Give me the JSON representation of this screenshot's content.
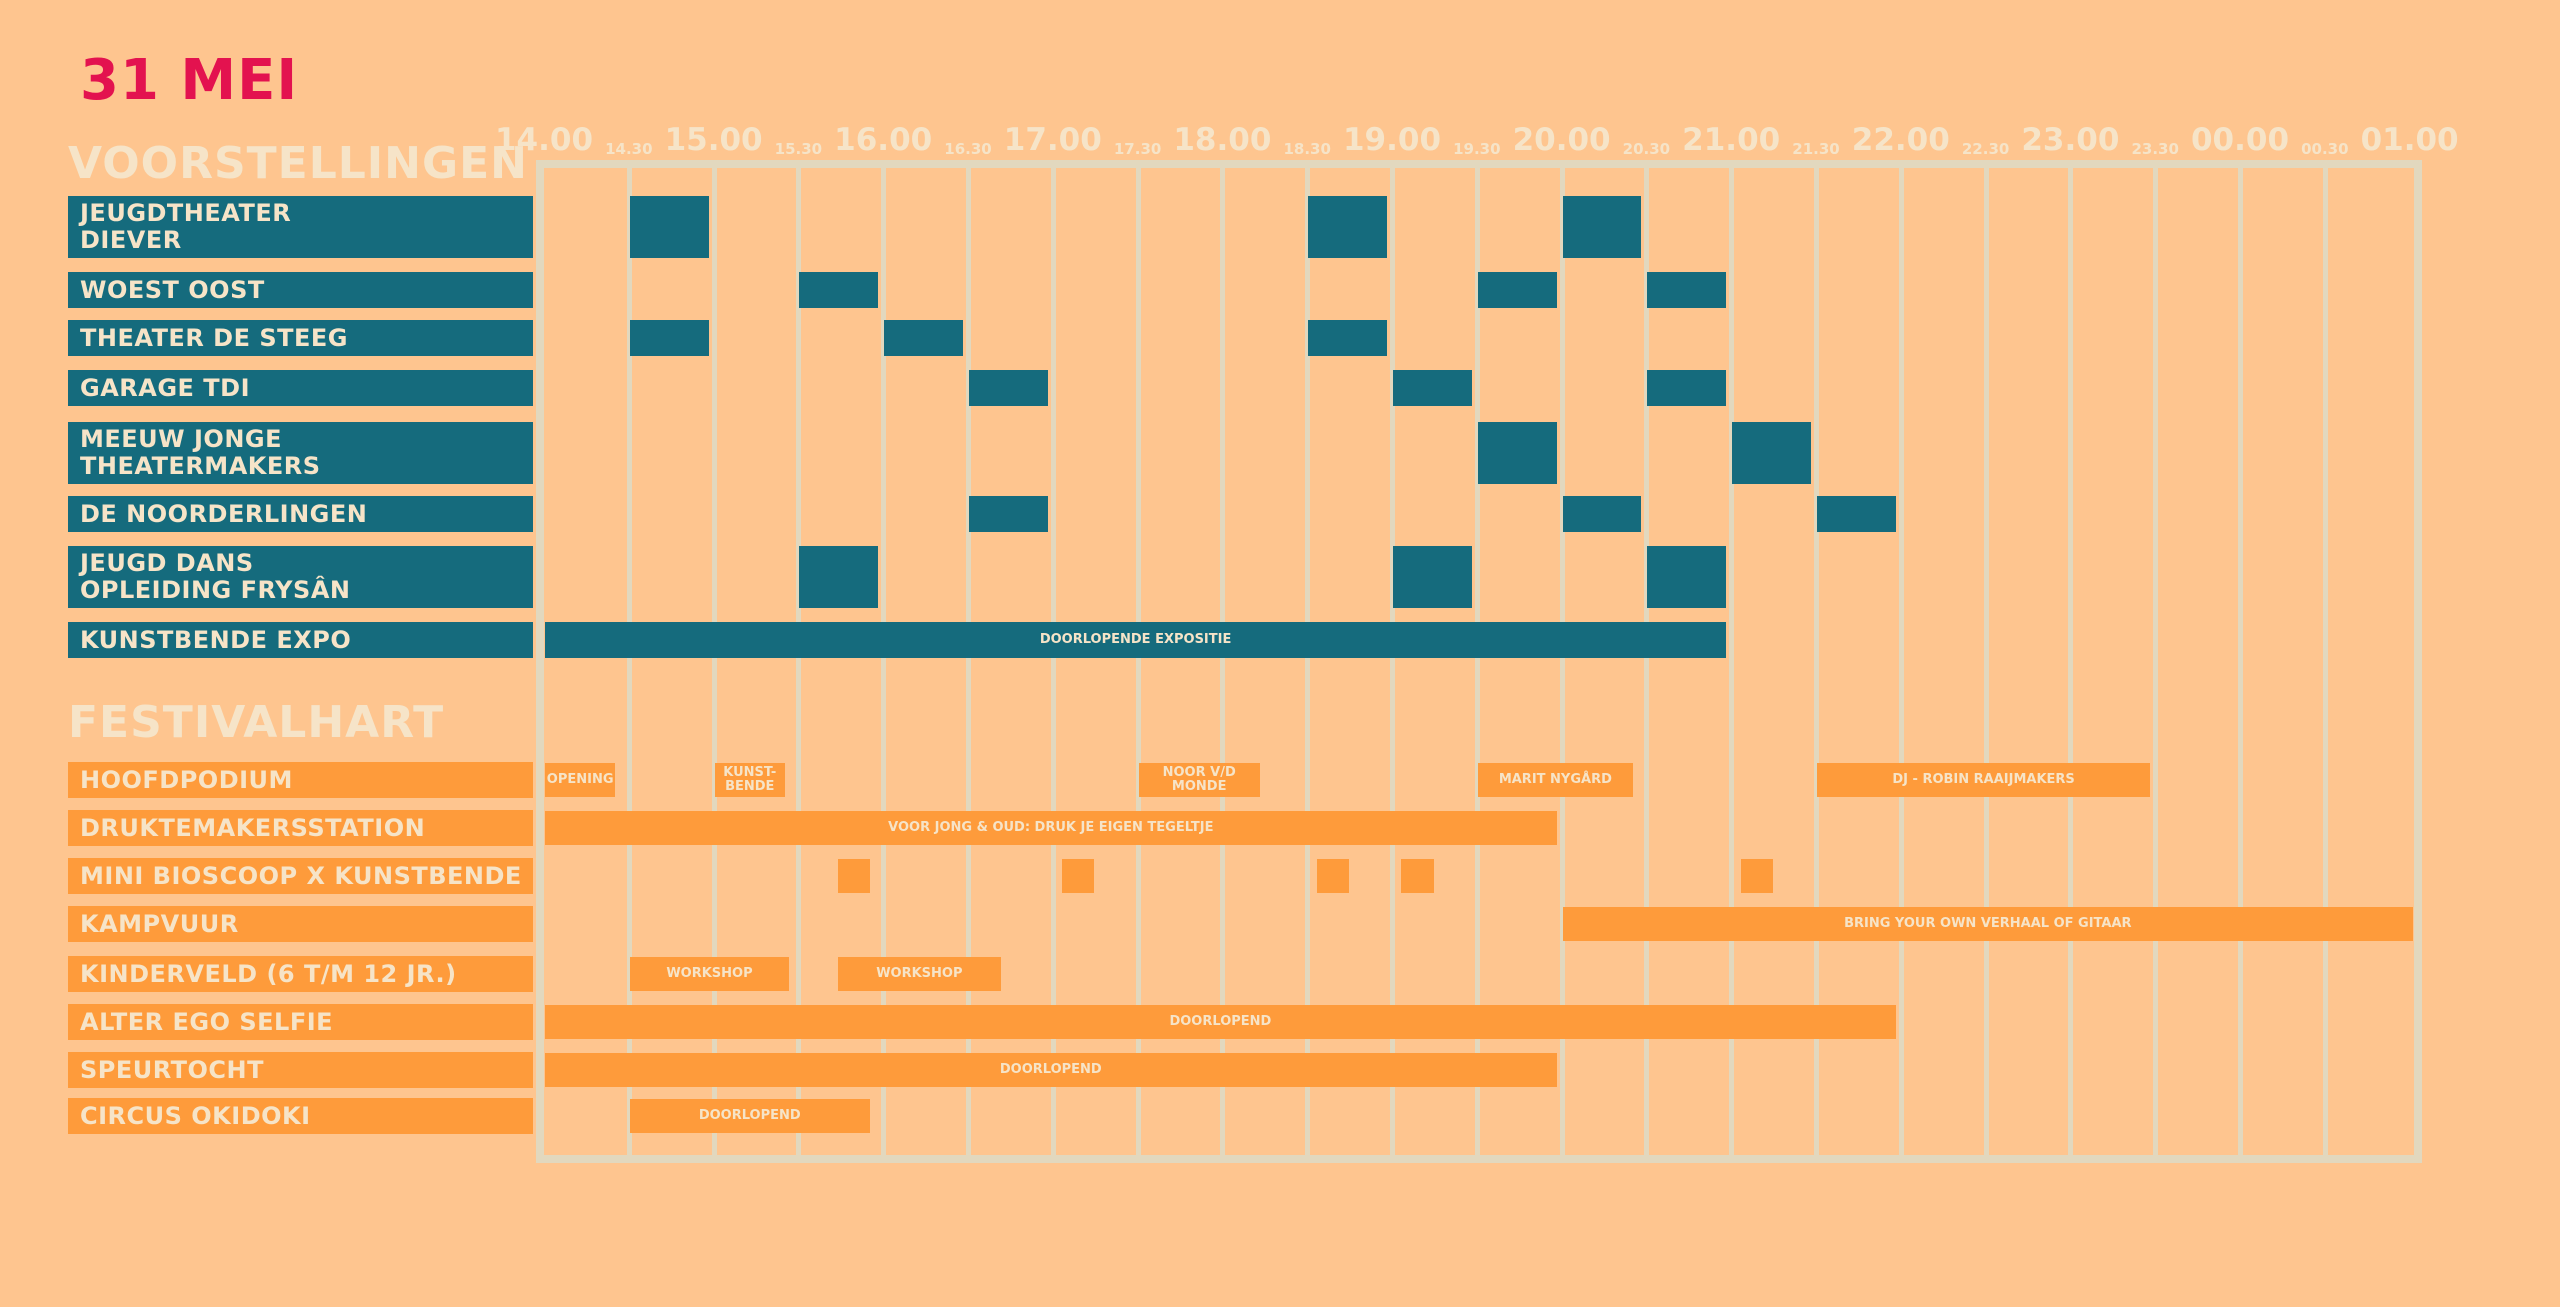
{
  "date": "31 MEI",
  "sections": {
    "voorstellingen": "VOORSTELLINGEN",
    "festivalhart": "FESTIVALHART"
  },
  "times": [
    "14.00",
    "14.30",
    "15.00",
    "15.30",
    "16.00",
    "16.30",
    "17.00",
    "17.30",
    "18.00",
    "18.30",
    "19.00",
    "19.30",
    "20.00",
    "20.30",
    "21.00",
    "21.30",
    "22.00",
    "22.30",
    "23.00",
    "23.30",
    "00.00",
    "00.30",
    "01.00"
  ],
  "rows": [
    {
      "label": "JEUGDTHEATER\nDIEVER",
      "type": "teal",
      "events": [
        {
          "start": 1,
          "end": 2,
          "text": ""
        },
        {
          "start": 9,
          "end": 10,
          "text": ""
        },
        {
          "start": 12,
          "end": 13,
          "text": ""
        }
      ]
    },
    {
      "label": "WOEST OOST",
      "type": "teal",
      "events": [
        {
          "start": 3,
          "end": 4,
          "text": ""
        },
        {
          "start": 11,
          "end": 12,
          "text": ""
        },
        {
          "start": 13,
          "end": 14,
          "text": ""
        }
      ]
    },
    {
      "label": "THEATER DE STEEG",
      "type": "teal",
      "events": [
        {
          "start": 1,
          "end": 2,
          "text": ""
        },
        {
          "start": 4,
          "end": 5,
          "text": ""
        },
        {
          "start": 9,
          "end": 10,
          "text": ""
        }
      ]
    },
    {
      "label": "GARAGE TDI",
      "type": "teal",
      "events": [
        {
          "start": 5,
          "end": 6,
          "text": ""
        },
        {
          "start": 10,
          "end": 11,
          "text": ""
        },
        {
          "start": 13,
          "end": 14,
          "text": ""
        }
      ]
    },
    {
      "label": "MEEUW JONGE\nTHEATERMAKERS",
      "type": "teal",
      "events": [
        {
          "start": 11,
          "end": 12,
          "text": ""
        },
        {
          "start": 14,
          "end": 15,
          "text": ""
        }
      ]
    },
    {
      "label": "DE NOORDERLINGEN",
      "type": "teal",
      "events": [
        {
          "start": 5,
          "end": 6,
          "text": ""
        },
        {
          "start": 12,
          "end": 13,
          "text": ""
        },
        {
          "start": 15,
          "end": 16,
          "text": ""
        }
      ]
    },
    {
      "label": "JEUGD DANS\nOPLEIDING FRYSÂN",
      "type": "teal",
      "events": [
        {
          "start": 3,
          "end": 4,
          "text": ""
        },
        {
          "start": 10,
          "end": 11,
          "text": ""
        },
        {
          "start": 13,
          "end": 14,
          "text": ""
        }
      ]
    },
    {
      "label": "KUNSTBENDE EXPO",
      "type": "teal",
      "events": [
        {
          "start": 0,
          "end": 14,
          "text": "DOORLOPENDE EXPOSITIE"
        }
      ]
    },
    {
      "label": "HOOFDPODIUM",
      "type": "orange",
      "events": [
        {
          "start": 0,
          "end": 0.9,
          "text": "OPENING"
        },
        {
          "start": 2,
          "end": 2.9,
          "text": "KUNST-\nBENDE"
        },
        {
          "start": 7,
          "end": 8.5,
          "text": "NOOR V/D MONDE"
        },
        {
          "start": 11,
          "end": 12.9,
          "text": "MARIT NYGÅRD"
        },
        {
          "start": 15,
          "end": 19,
          "text": "DJ - ROBIN RAAIJMAKERS"
        }
      ]
    },
    {
      "label": "DRUKTEMAKERSSTATION",
      "type": "orange",
      "events": [
        {
          "start": 0,
          "end": 12,
          "text": "VOOR JONG & OUD: DRUK JE EIGEN TEGELTJE"
        }
      ]
    },
    {
      "label": "MINI BIOSCOOP X KUNSTBENDE",
      "type": "orange",
      "events": [
        {
          "start": 3.45,
          "end": 3.9,
          "text": ""
        },
        {
          "start": 6.1,
          "end": 6.55,
          "text": ""
        },
        {
          "start": 9.1,
          "end": 9.55,
          "text": ""
        },
        {
          "start": 10.1,
          "end": 10.55,
          "text": ""
        },
        {
          "start": 14.1,
          "end": 14.55,
          "text": ""
        }
      ]
    },
    {
      "label": "KAMPVUUR",
      "type": "orange",
      "events": [
        {
          "start": 12,
          "end": 22.1,
          "text": "BRING YOUR OWN VERHAAL OF GITAAR"
        }
      ]
    },
    {
      "label": "KINDERVELD (6 T/M 12 JR.)",
      "type": "orange",
      "events": [
        {
          "start": 1,
          "end": 2.95,
          "text": "WORKSHOP"
        },
        {
          "start": 3.45,
          "end": 5.45,
          "text": "WORKSHOP"
        }
      ]
    },
    {
      "label": "ALTER EGO SELFIE",
      "type": "orange",
      "events": [
        {
          "start": 0,
          "end": 16,
          "text": "DOORLOPEND"
        }
      ]
    },
    {
      "label": "SPEURTOCHT",
      "type": "orange",
      "events": [
        {
          "start": 0,
          "end": 12,
          "text": "DOORLOPEND"
        }
      ]
    },
    {
      "label": "CIRCUS OKIDOKI",
      "type": "orange",
      "events": [
        {
          "start": 1,
          "end": 3.9,
          "text": "DOORLOPEND"
        }
      ]
    }
  ]
}
